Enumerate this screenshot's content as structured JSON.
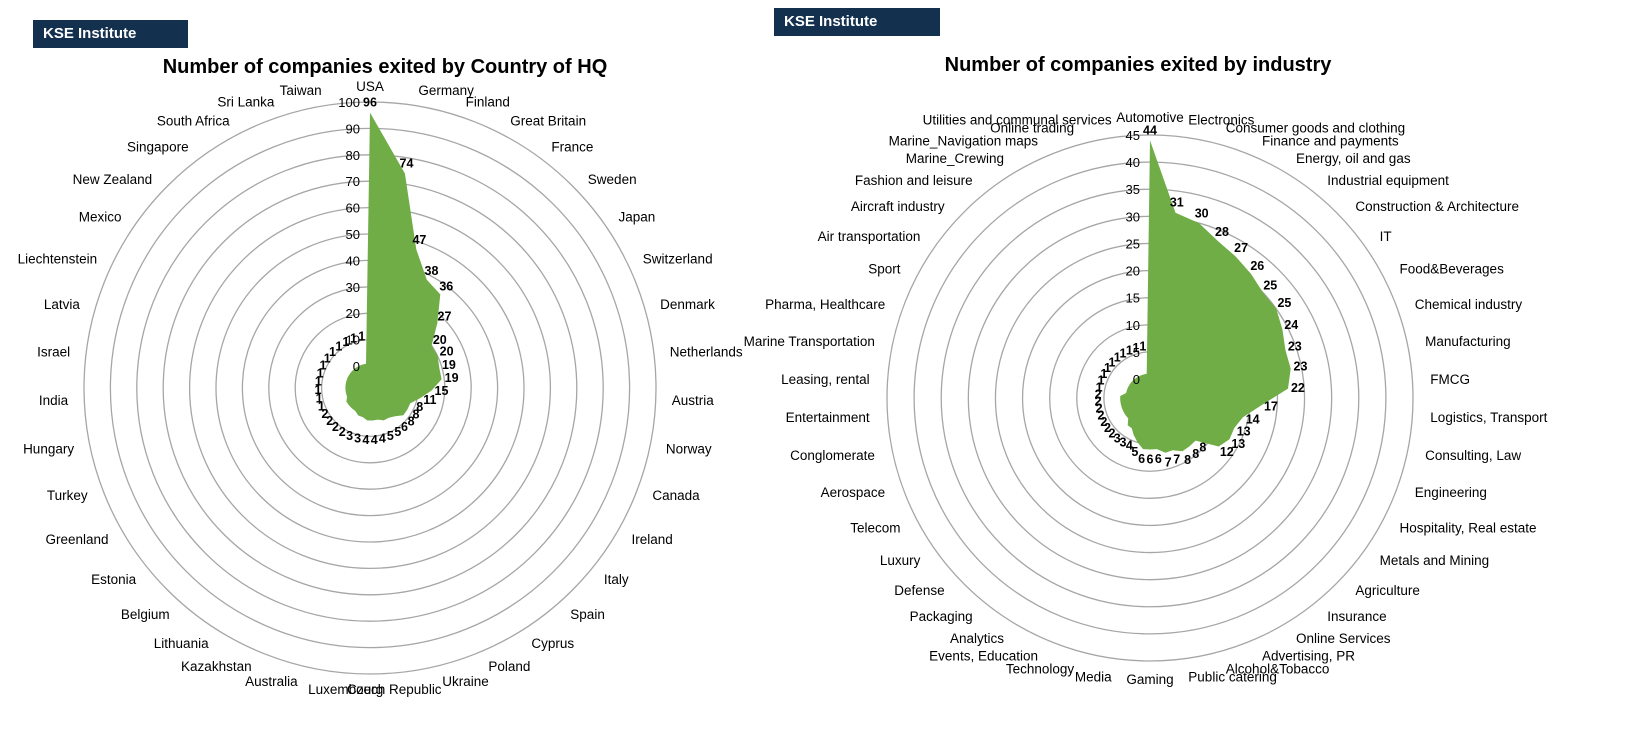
{
  "brand": {
    "left": "KSE Institute",
    "right": "KSE Institute"
  },
  "colors": {
    "fill": "#70ad47",
    "grid": "#a6a6a6",
    "brand_bg": "#14304f"
  },
  "chart_data": [
    {
      "type": "radar",
      "title": "Number of companies exited by Country of HQ",
      "rlim": [
        0,
        100
      ],
      "ticks": [
        0,
        10,
        20,
        30,
        40,
        50,
        60,
        70,
        80,
        90,
        100
      ],
      "grid": true,
      "categories": [
        "USA",
        "Germany",
        "Finland",
        "Great Britain",
        "France",
        "Sweden",
        "Japan",
        "Switzerland",
        "Denmark",
        "Netherlands",
        "Austria",
        "Norway",
        "Canada",
        "Ireland",
        "Italy",
        "Spain",
        "Cyprus",
        "Poland",
        "Ukraine",
        "Czech Republic",
        "Luxembourg",
        "Australia",
        "Kazakhstan",
        "Lithuania",
        "Belgium",
        "Estonia",
        "Greenland",
        "Turkey",
        "Hungary",
        "India",
        "Israel",
        "Latvia",
        "Liechtenstein",
        "Mexico",
        "New Zealand",
        "Singapore",
        "South Africa",
        "Sri Lanka",
        "Taiwan"
      ],
      "values": [
        96,
        74,
        47,
        38,
        36,
        27,
        20,
        20,
        19,
        19,
        15,
        11,
        8,
        8,
        8,
        6,
        5,
        5,
        4,
        4,
        4,
        3,
        3,
        2,
        2,
        2,
        2,
        1,
        1,
        1,
        1,
        1,
        1,
        1,
        1,
        1,
        1,
        1,
        1
      ]
    },
    {
      "type": "radar",
      "title": "Number of companies exited by industry",
      "rlim": [
        0,
        45
      ],
      "ticks": [
        0,
        5,
        10,
        15,
        20,
        25,
        30,
        35,
        40,
        45
      ],
      "grid": true,
      "categories": [
        "Automotive",
        "Electronics",
        "Consumer goods and clothing",
        "Finance and payments",
        "Energy, oil and gas",
        "Industrial equipment",
        "Construction & Architecture",
        "IT",
        "Food&Beverages",
        "Chemical industry",
        "Manufacturing",
        "FMCG",
        "Logistics, Transport",
        "Consulting, Law",
        "Engineering",
        "Hospitality, Real estate",
        "Metals and Mining",
        "Agriculture",
        "Insurance",
        "Online Services",
        "Advertising, PR",
        "Alcohol&Tobacco",
        "Public catering",
        "Gaming",
        "Media",
        "Technology",
        "Events, Education",
        "Analytics",
        "Packaging",
        "Defense",
        "Luxury",
        "Telecom",
        "Aerospace",
        "Conglomerate",
        "Entertainment",
        "Leasing, rental",
        "Marine Transportation",
        "Pharma, Healthcare",
        "Sport",
        "Air transportation",
        "Aircraft industry",
        "Fashion and leisure",
        "Marine_Crewing",
        "Marine_Navigation maps",
        "Online trading",
        "Utilities and communal services"
      ],
      "values": [
        44,
        31,
        30,
        28,
        27,
        26,
        25,
        25,
        24,
        23,
        23,
        22,
        17,
        14,
        13,
        13,
        12,
        8,
        8,
        8,
        7,
        7,
        6,
        6,
        6,
        5,
        4,
        3,
        3,
        2,
        2,
        2,
        2,
        2,
        2,
        2,
        1,
        1,
        1,
        1,
        1,
        1,
        1,
        1,
        1,
        1
      ]
    }
  ]
}
